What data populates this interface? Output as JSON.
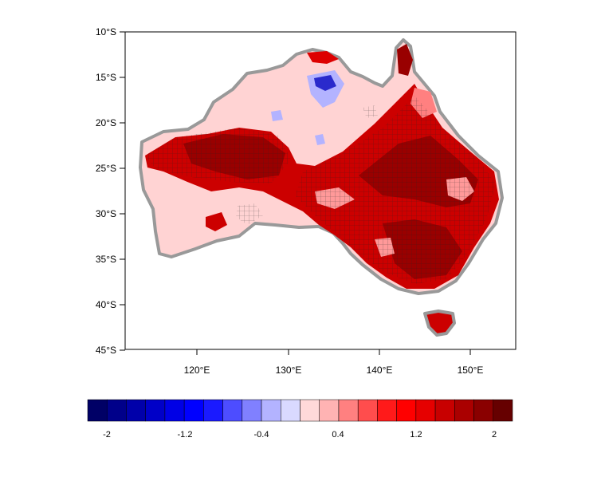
{
  "map": {
    "y_ticks": [
      "10°S",
      "15°S",
      "20°S",
      "25°S",
      "30°S",
      "35°S",
      "40°S",
      "45°S"
    ],
    "x_ticks": [
      "120°E",
      "130°E",
      "140°E",
      "150°E"
    ],
    "extent": {
      "lon": [
        112,
        155
      ],
      "lat": [
        -45,
        -10
      ]
    },
    "land_color": "#ffd0d0",
    "coast_color": "#999999",
    "hatch": "significance stippling"
  },
  "colorbar": {
    "colors": [
      "#000066",
      "#00008a",
      "#0000aa",
      "#0000c8",
      "#0000e6",
      "#0000ff",
      "#1a1aff",
      "#4d4dff",
      "#8080ff",
      "#b3b3ff",
      "#d9d9ff",
      "#ffd9d9",
      "#ffb3b3",
      "#ff8080",
      "#ff4d4d",
      "#ff1a1a",
      "#ff0000",
      "#e60000",
      "#c80000",
      "#aa0000",
      "#8a0000",
      "#660000"
    ],
    "tick_labels": [
      "-2",
      "-1.2",
      "-0.4",
      "0.4",
      "1.2",
      "2"
    ]
  }
}
